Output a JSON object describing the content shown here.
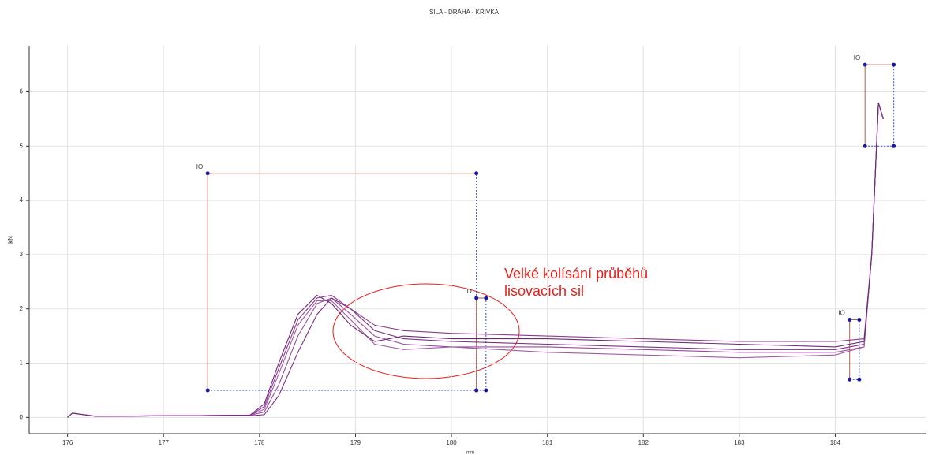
{
  "chart_data": {
    "type": "line",
    "title": "SILA - DRÁHA - KŘIVKA",
    "xlabel": "mm",
    "ylabel": "kN",
    "annotation": "Velké kolísání průběhů lisovacích sil",
    "annotation_color": "#e8201a",
    "xlim": [
      175.6,
      184.95
    ],
    "ylim": [
      -0.3,
      6.85
    ],
    "xticks": [
      176,
      177,
      178,
      179,
      180,
      181,
      182,
      183,
      184
    ],
    "yticks": [
      0,
      1,
      2,
      3,
      4,
      5,
      6
    ],
    "grid": true,
    "x": [
      176,
      176.05,
      176.3,
      177,
      177.9,
      178.05,
      178.2,
      178.4,
      178.6,
      178.75,
      178.95,
      179.2,
      179.5,
      180,
      181,
      182,
      183,
      184,
      184.3,
      184.38,
      184.45,
      184.5
    ],
    "series": [
      {
        "color": "#8e3a8e",
        "values": [
          0,
          0.08,
          0.02,
          0.03,
          0.04,
          0.2,
          0.9,
          1.8,
          2.2,
          2.25,
          2.0,
          1.7,
          1.6,
          1.55,
          1.5,
          1.45,
          1.4,
          1.4,
          1.45,
          3.0,
          5.8,
          5.5
        ]
      },
      {
        "color": "#9a4aa0",
        "values": [
          0,
          0.08,
          0.02,
          0.03,
          0.04,
          0.1,
          0.6,
          1.5,
          2.1,
          2.2,
          1.9,
          1.5,
          1.35,
          1.3,
          1.3,
          1.25,
          1.2,
          1.2,
          1.3,
          3.0,
          5.8,
          5.5
        ]
      },
      {
        "color": "#7d2f86",
        "values": [
          0,
          0.08,
          0.02,
          0.03,
          0.03,
          0.05,
          0.4,
          1.2,
          1.9,
          2.2,
          2.0,
          1.6,
          1.45,
          1.4,
          1.35,
          1.3,
          1.25,
          1.25,
          1.35,
          3.0,
          5.8,
          5.5
        ]
      },
      {
        "color": "#a55aa8",
        "values": [
          0,
          0.08,
          0.02,
          0.03,
          0.04,
          0.15,
          0.8,
          1.7,
          2.15,
          2.15,
          1.8,
          1.35,
          1.25,
          1.3,
          1.2,
          1.15,
          1.1,
          1.15,
          1.3,
          3.0,
          5.8,
          5.5
        ]
      },
      {
        "color": "#6f2a7a",
        "values": [
          0,
          0.08,
          0.02,
          0.03,
          0.04,
          0.25,
          1.0,
          1.9,
          2.25,
          2.1,
          1.7,
          1.4,
          1.5,
          1.45,
          1.45,
          1.4,
          1.35,
          1.3,
          1.4,
          3.0,
          5.8,
          5.5
        ]
      }
    ],
    "windows": [
      {
        "label": "IO",
        "x": [
          177.46,
          180.26
        ],
        "y": [
          0.5,
          4.5
        ]
      },
      {
        "label": "IO",
        "x": [
          180.26,
          180.36
        ],
        "y": [
          0.5,
          2.2
        ]
      },
      {
        "label": "IO",
        "x": [
          184.15,
          184.25
        ],
        "y": [
          0.7,
          1.8
        ]
      },
      {
        "label": "IO",
        "x": [
          184.31,
          184.61
        ],
        "y": [
          5,
          6.5
        ]
      }
    ]
  }
}
